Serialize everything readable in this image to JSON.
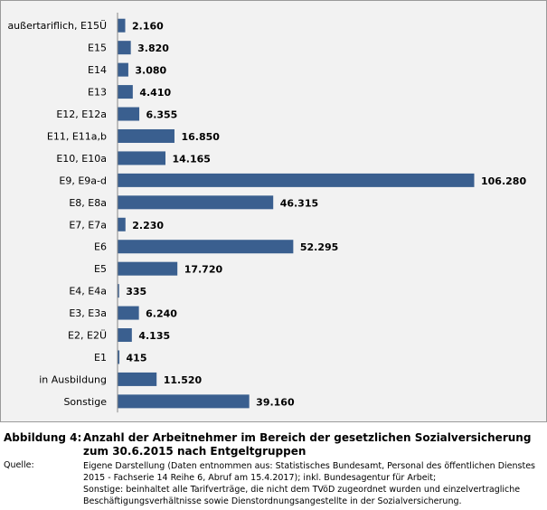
{
  "chart_data": {
    "type": "bar",
    "orientation": "horizontal",
    "categories": [
      "außertariflich, E15Ü",
      "E15",
      "E14",
      "E13",
      "E12, E12a",
      "E11, E11a,b",
      "E10, E10a",
      "E9, E9a-d",
      "E8, E8a",
      "E7, E7a",
      "E6",
      "E5",
      "E4, E4a",
      "E3, E3a",
      "E2, E2Ü",
      "E1",
      "in Ausbildung",
      "Sonstige"
    ],
    "values": [
      2160,
      3820,
      3080,
      4410,
      6355,
      16850,
      14165,
      106280,
      46315,
      2230,
      52295,
      17720,
      335,
      6240,
      4135,
      415,
      11520,
      39160
    ],
    "value_labels": [
      "2.160",
      "3.820",
      "3.080",
      "4.410",
      "6.355",
      "16.850",
      "14.165",
      "106.280",
      "46.315",
      "2.230",
      "52.295",
      "17.720",
      "335",
      "6.240",
      "4.135",
      "415",
      "11.520",
      "39.160"
    ],
    "xlim": [
      0,
      106280
    ],
    "grid": false,
    "bar_color": "#3a5f8f",
    "background": "#f2f2f2"
  },
  "caption": {
    "label": "Abbildung 4:",
    "title": "Anzahl der Arbeitnehmer im Bereich der gesetzlichen Sozialversicherung zum 30.6.2015 nach Entgeltgruppen",
    "source_label": "Quelle:",
    "source_text": "Eigene Darstellung (Daten entnommen aus: Statistisches Bundesamt, Personal des öffentlichen Dienstes 2015 - Fachserie 14 Reihe 6, Abruf am 15.4.2017);  inkl. Bundesagentur für Arbeit;",
    "note_text": "Sonstige: beinhaltet alle Tarifverträge, die nicht dem TVöD zugeordnet wurden und einzelvertragliche Beschäftigungsverhältnisse sowie Dienstordnungsangestellte in der Sozialversicherung."
  }
}
